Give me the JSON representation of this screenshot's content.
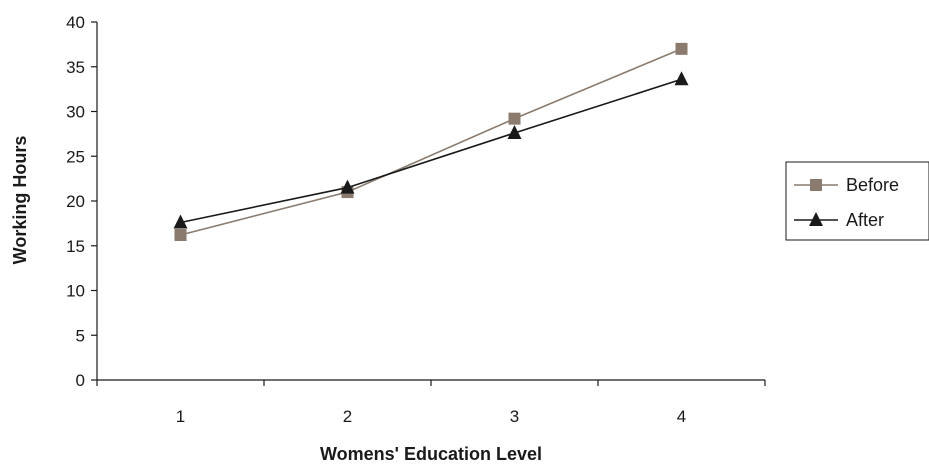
{
  "chart_data": {
    "type": "line",
    "xlabel": "Womens' Education Level",
    "ylabel": "Working Hours",
    "categories": [
      "1",
      "2",
      "3",
      "4"
    ],
    "ylim": [
      0,
      40
    ],
    "yticks": [
      0,
      5,
      10,
      15,
      20,
      25,
      30,
      35,
      40
    ],
    "grid": false,
    "legend_position": "right",
    "series": [
      {
        "name": "Before",
        "marker": "square",
        "color": "#8a7b6e",
        "values": [
          16.2,
          21.0,
          29.2,
          37.0
        ]
      },
      {
        "name": "After",
        "marker": "triangle",
        "color": "#1a1a1a",
        "values": [
          17.6,
          21.5,
          27.6,
          33.6
        ]
      }
    ]
  }
}
